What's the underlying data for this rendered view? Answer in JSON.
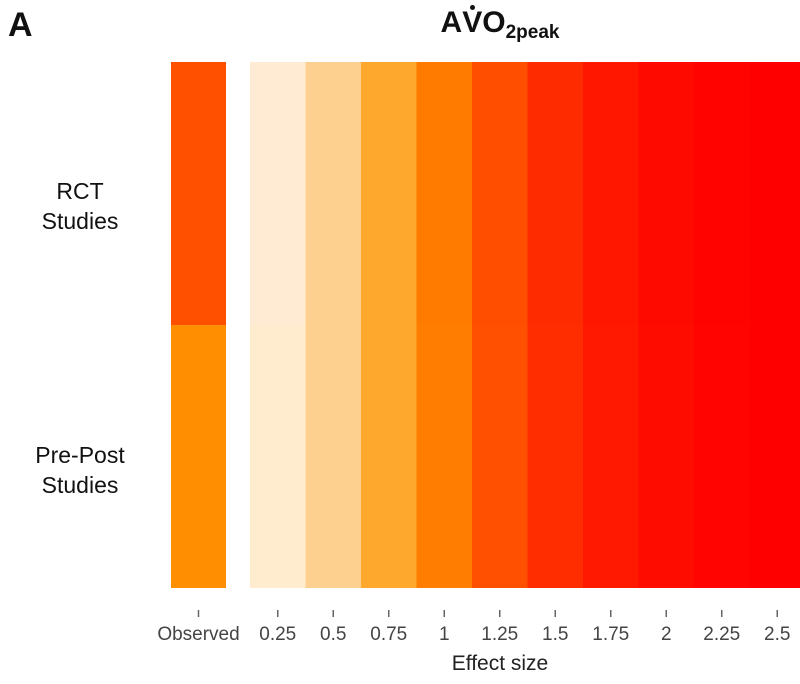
{
  "panel_label": "A",
  "title": {
    "prefix": "A",
    "v": "V",
    "o": "O",
    "sub": "2peak"
  },
  "chart_data": {
    "type": "heatmap",
    "xlabel": "Effect size",
    "x_categories": [
      "Observed",
      "0.25",
      "0.5",
      "0.75",
      "1",
      "1.25",
      "1.5",
      "1.75",
      "2",
      "2.25",
      "2.5"
    ],
    "rows": [
      {
        "label_line1": "RCT",
        "label_line2": "Studies",
        "colors": [
          "#ff5000",
          "#ffebd3",
          "#fed08f",
          "#fea82d",
          "#ff7b00",
          "#ff4e00",
          "#ff2b00",
          "#ff1700",
          "#ff0a00",
          "#ff0300",
          "#ff0000"
        ]
      },
      {
        "label_line1": "Pre-Post",
        "label_line2": "Studies",
        "colors": [
          "#ff8e00",
          "#ffeccf",
          "#fed08f",
          "#fea82d",
          "#ff7d00",
          "#ff4f00",
          "#ff2d00",
          "#ff1900",
          "#ff0c00",
          "#ff0400",
          "#ff0000"
        ]
      }
    ]
  }
}
